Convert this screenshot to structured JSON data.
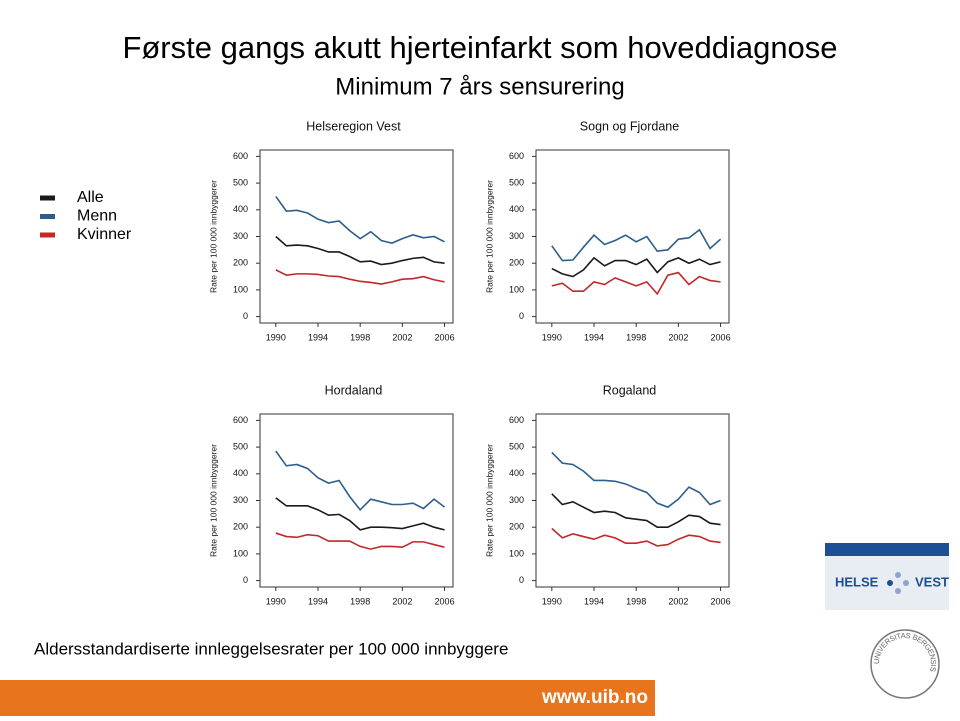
{
  "title": "Første gangs akutt hjerteinfarkt som hoveddiagnose",
  "subtitle": "Minimum 7 års sensurering",
  "legend": [
    {
      "name": "Alle",
      "color": "#1a1a1a"
    },
    {
      "name": "Menn",
      "color": "#2d5e8e"
    },
    {
      "name": "Kvinner",
      "color": "#c0282a"
    }
  ],
  "footer": "Aldersstandardiserte innleggelsesrater per 100 000 innbyggere",
  "url": "www.uib.no",
  "logo": [
    "HELSE",
    "VEST"
  ],
  "seal": "UNIVERSITAS BERGENSIS",
  "chart_data": [
    {
      "type": "line",
      "title": "Helseregion Vest",
      "y_label": "Rate per 100 000 innbyggerer",
      "x": [
        1990,
        1991,
        1992,
        1993,
        1994,
        1995,
        1996,
        1997,
        1998,
        1999,
        2000,
        2001,
        2002,
        2003,
        2004,
        2005,
        2006
      ],
      "xlim": [
        1988.5,
        2006.8
      ],
      "xticks": [
        1990,
        1994,
        1998,
        2002,
        2006
      ],
      "ylim": [
        -24,
        624
      ],
      "yticks": [
        0,
        100,
        200,
        300,
        400,
        500,
        600
      ],
      "series": [
        {
          "values": [
            300,
            265,
            268,
            265,
            255,
            242,
            242,
            225,
            205,
            208,
            195,
            200,
            210,
            218,
            222,
            205,
            200
          ]
        },
        {
          "values": [
            450,
            395,
            398,
            388,
            365,
            352,
            358,
            322,
            292,
            318,
            285,
            275,
            292,
            306,
            295,
            300,
            280
          ]
        },
        {
          "values": [
            175,
            155,
            160,
            160,
            158,
            152,
            150,
            140,
            132,
            128,
            122,
            130,
            140,
            142,
            150,
            138,
            130
          ]
        }
      ]
    },
    {
      "type": "line",
      "title": "Sogn og Fjordane",
      "y_label": "Rate per 100 000 innbyggerer",
      "x": [
        1990,
        1991,
        1992,
        1993,
        1994,
        1995,
        1996,
        1997,
        1998,
        1999,
        2000,
        2001,
        2002,
        2003,
        2004,
        2005,
        2006
      ],
      "xlim": [
        1988.5,
        2006.8
      ],
      "xticks": [
        1990,
        1994,
        1998,
        2002,
        2006
      ],
      "ylim": [
        -24,
        624
      ],
      "yticks": [
        0,
        100,
        200,
        300,
        400,
        500,
        600
      ],
      "series": [
        {
          "values": [
            180,
            160,
            150,
            175,
            220,
            190,
            210,
            210,
            195,
            215,
            165,
            205,
            220,
            200,
            215,
            195,
            205
          ]
        },
        {
          "values": [
            265,
            210,
            212,
            260,
            305,
            270,
            285,
            305,
            280,
            300,
            245,
            250,
            290,
            295,
            325,
            255,
            290
          ]
        },
        {
          "values": [
            115,
            125,
            95,
            95,
            130,
            120,
            145,
            130,
            115,
            130,
            85,
            155,
            165,
            120,
            150,
            135,
            130
          ]
        }
      ]
    },
    {
      "type": "line",
      "title": "Hordaland",
      "y_label": "Rate per 100 000 innbyggerer",
      "x": [
        1990,
        1991,
        1992,
        1993,
        1994,
        1995,
        1996,
        1997,
        1998,
        1999,
        2000,
        2001,
        2002,
        2003,
        2004,
        2005,
        2006
      ],
      "xlim": [
        1988.5,
        2006.8
      ],
      "xticks": [
        1990,
        1994,
        1998,
        2002,
        2006
      ],
      "ylim": [
        -24,
        624
      ],
      "yticks": [
        0,
        100,
        200,
        300,
        400,
        500,
        600
      ],
      "series": [
        {
          "values": [
            310,
            280,
            280,
            280,
            265,
            245,
            248,
            225,
            190,
            200,
            200,
            198,
            195,
            205,
            215,
            200,
            190
          ]
        },
        {
          "values": [
            485,
            430,
            435,
            420,
            385,
            365,
            375,
            315,
            265,
            305,
            295,
            285,
            285,
            290,
            270,
            305,
            275
          ]
        },
        {
          "values": [
            178,
            165,
            162,
            172,
            168,
            148,
            148,
            148,
            128,
            118,
            128,
            128,
            125,
            145,
            145,
            135,
            125
          ]
        }
      ]
    },
    {
      "type": "line",
      "title": "Rogaland",
      "y_label": "Rate per 100 000 innbyggerer",
      "x": [
        1990,
        1991,
        1992,
        1993,
        1994,
        1995,
        1996,
        1997,
        1998,
        1999,
        2000,
        2001,
        2002,
        2003,
        2004,
        2005,
        2006
      ],
      "xlim": [
        1988.5,
        2006.8
      ],
      "xticks": [
        1990,
        1994,
        1998,
        2002,
        2006
      ],
      "ylim": [
        -24,
        624
      ],
      "yticks": [
        0,
        100,
        200,
        300,
        400,
        500,
        600
      ],
      "series": [
        {
          "values": [
            325,
            285,
            295,
            275,
            255,
            260,
            255,
            235,
            230,
            225,
            200,
            200,
            220,
            245,
            240,
            215,
            210
          ]
        },
        {
          "values": [
            480,
            440,
            435,
            410,
            375,
            375,
            372,
            362,
            345,
            330,
            290,
            275,
            305,
            350,
            330,
            285,
            300
          ]
        },
        {
          "values": [
            195,
            160,
            175,
            165,
            155,
            170,
            160,
            140,
            140,
            148,
            130,
            135,
            155,
            170,
            165,
            148,
            143
          ]
        }
      ]
    }
  ]
}
